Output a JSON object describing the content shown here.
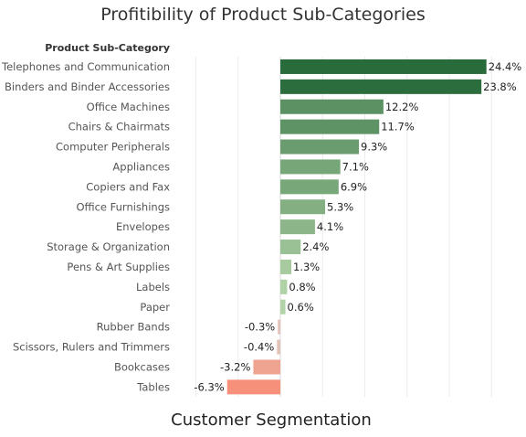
{
  "title": "Profitibility of Product Sub-Categories",
  "footer_title": "Customer Segmentation",
  "chart_data": {
    "type": "bar",
    "orientation": "horizontal",
    "title": "Profitibility of Product Sub-Categories",
    "row_header": "Product Sub-Category",
    "categories": [
      "Telephones and Communication",
      "Binders and Binder Accessories",
      "Office Machines",
      "Chairs & Chairmats",
      "Computer Peripherals",
      "Appliances",
      "Copiers and Fax",
      "Office Furnishings",
      "Envelopes",
      "Storage & Organization",
      "Pens & Art Supplies",
      "Labels",
      "Paper",
      "Rubber Bands",
      "Scissors, Rulers and Trimmers",
      "Bookcases",
      "Tables"
    ],
    "values": [
      24.4,
      23.8,
      12.2,
      11.7,
      9.3,
      7.1,
      6.9,
      5.3,
      4.1,
      2.4,
      1.3,
      0.8,
      0.6,
      -0.3,
      -0.4,
      -3.2,
      -6.3
    ],
    "value_labels": [
      "24.4%",
      "23.8%",
      "12.2%",
      "11.7%",
      "9.3%",
      "7.1%",
      "6.9%",
      "5.3%",
      "4.1%",
      "2.4%",
      "1.3%",
      "0.8%",
      "0.6%",
      "-0.3%",
      "-0.4%",
      "-3.2%",
      "-6.3%"
    ],
    "xlim": [
      -14,
      32
    ],
    "grid": true,
    "colors": {
      "pos_dark": "#2a6b3c",
      "pos_light": "#c6e3b8",
      "neg_dark": "#f7907a",
      "neg_light": "#dccfc8",
      "grid": "#ececec"
    }
  }
}
